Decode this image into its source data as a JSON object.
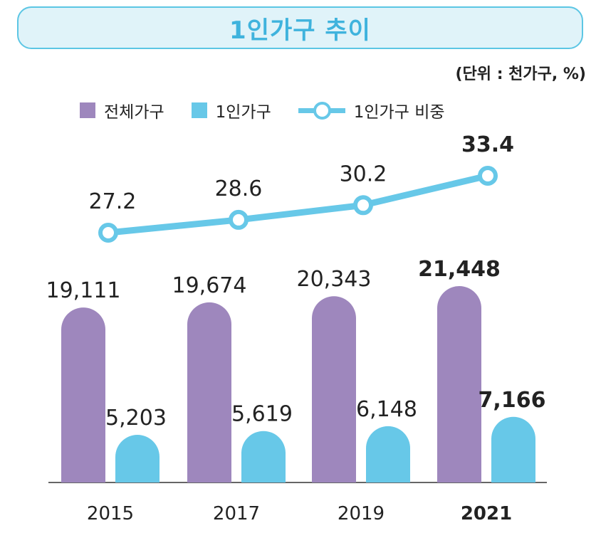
{
  "title": "1인가구 추이",
  "unit_note": "(단위 : 천가구, %)",
  "legend": [
    {
      "label": "전체가구",
      "color": "#9e87bd"
    },
    {
      "label": "1인가구",
      "color": "#67c8e8"
    },
    {
      "label": "1인가구 비중",
      "color": "#67c8e8"
    }
  ],
  "chart_data": {
    "type": "bar",
    "title": "1인가구 추이",
    "categories": [
      "2015",
      "2017",
      "2019",
      "2021"
    ],
    "series": [
      {
        "name": "전체가구",
        "type": "bar",
        "color": "#9e87bd",
        "values": [
          19111,
          19674,
          20343,
          21448
        ],
        "labels": [
          "19,111",
          "19,674",
          "20,343",
          "21,448"
        ]
      },
      {
        "name": "1인가구",
        "type": "bar",
        "color": "#67c8e8",
        "values": [
          5203,
          5619,
          6148,
          7166
        ],
        "labels": [
          "5,203",
          "5,619",
          "6,148",
          "7,166"
        ]
      },
      {
        "name": "1인가구 비중",
        "type": "line",
        "color": "#67c8e8",
        "values": [
          27.2,
          28.6,
          30.2,
          33.4
        ],
        "labels": [
          "27.2",
          "28.6",
          "30.2",
          "33.4"
        ]
      }
    ],
    "highlight_category": "2021",
    "xlabel": "",
    "ylabel": "천가구, %",
    "grid": false
  }
}
